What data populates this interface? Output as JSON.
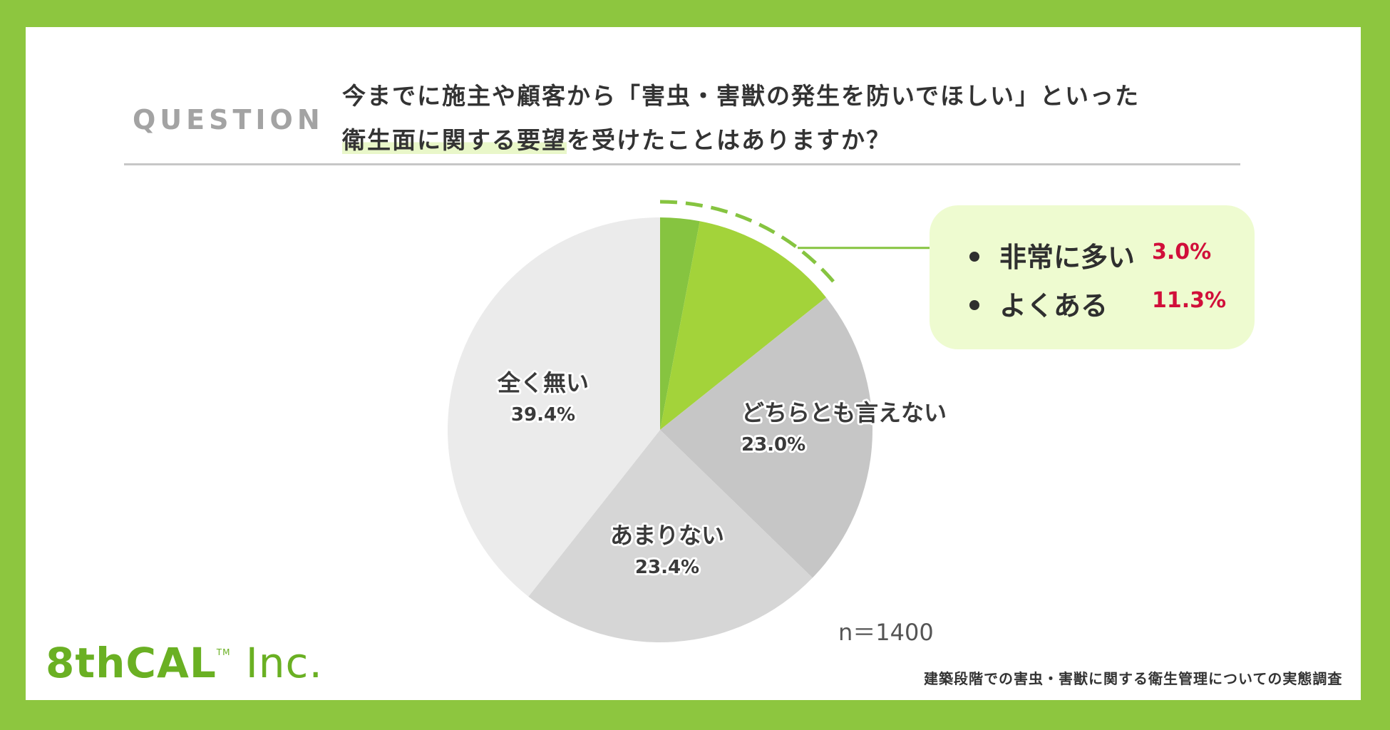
{
  "question": {
    "label": "QUESTION",
    "line1": "今までに施主や顧客から「害虫・害獣の発生を防いでほしい」といった",
    "line2_highlight": "衛生面に関する要望",
    "line2_rest": "を受けたことはありますか？"
  },
  "chart_data": {
    "type": "pie",
    "categories": [
      "非常に多い",
      "よくある",
      "どちらとも言えない",
      "あまりない",
      "全く無い"
    ],
    "values": [
      3.0,
      11.3,
      23.0,
      23.4,
      39.4
    ],
    "value_labels": [
      "3.0%",
      "11.3%",
      "23.0%",
      "23.4%",
      "39.4%"
    ],
    "colors": [
      "#86c440",
      "#a3d33a",
      "#c6c6c6",
      "#d6d6d6",
      "#ebebeb"
    ],
    "start": "12 o'clock, clockwise",
    "highlight": [
      "非常に多い",
      "よくある"
    ],
    "legend": [
      {
        "label": "非常に多い",
        "value": "3.0%"
      },
      {
        "label": "よくある",
        "value": "11.3%"
      }
    ]
  },
  "sample_size": "n＝1400",
  "footer": "建築段階での害虫・害獣に関する衛生管理についての実態調査",
  "logo": {
    "main": "8thCAL",
    "tm": "TM",
    "inc": "Inc."
  }
}
